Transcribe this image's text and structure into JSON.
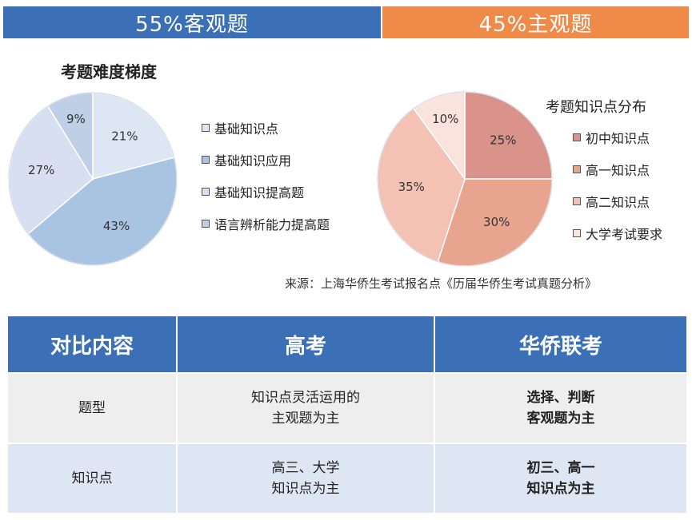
{
  "banner": {
    "left_text": "55%客观题",
    "right_text": "45%主观题",
    "left_color": "#3b6fb6",
    "right_color": "#ef8a48"
  },
  "chart_data": [
    {
      "type": "pie",
      "title": "考题难度梯度",
      "categories": [
        "基础知识点",
        "基础知识应用",
        "基础知识提高题",
        "语言辨析能力提高题"
      ],
      "values": [
        21,
        43,
        27,
        9
      ],
      "labels": [
        "21%",
        "43%",
        "27%",
        "9%"
      ],
      "colors": [
        "#dde7f3",
        "#a9c3e2",
        "#d8dff0",
        "#bfd0e6"
      ],
      "legend_position": "right"
    },
    {
      "type": "pie",
      "title": "考题知识点分布",
      "categories": [
        "初中知识点",
        "高一知识点",
        "高二知识点",
        "大学考试要求"
      ],
      "values": [
        25,
        30,
        35,
        10
      ],
      "labels": [
        "25%",
        "30%",
        "35%",
        "10%"
      ],
      "colors": [
        "#d9938b",
        "#e7a590",
        "#f4c2b4",
        "#f9e3dc"
      ],
      "legend_position": "right"
    }
  ],
  "source": "来源：上海华侨生考试报名点《历届华侨生考试真题分析》",
  "table": {
    "headers": [
      "对比内容",
      "高考",
      "华侨联考"
    ],
    "rows": [
      [
        "题型",
        "知识点灵活运用的\n主观题为主",
        "选择、判断\n客观题为主"
      ],
      [
        "知识点",
        "高三、大学\n知识点为主",
        "初三、高一\n知识点为主"
      ]
    ]
  }
}
